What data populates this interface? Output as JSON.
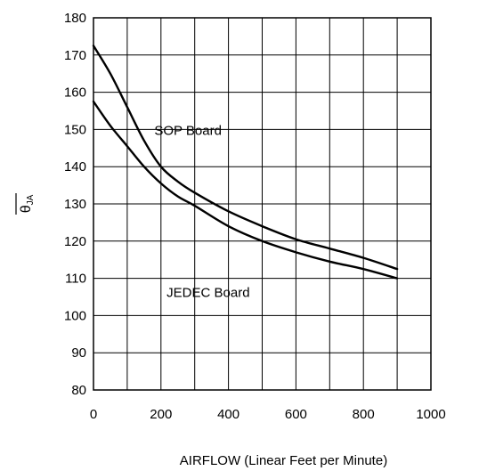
{
  "chart_data": {
    "type": "line",
    "xlabel": "AIRFLOW (Linear Feet per Minute)",
    "ylabel": "θJA",
    "ylabel_main": "θ",
    "ylabel_sub": "JA",
    "xlim": [
      0,
      1000
    ],
    "ylim": [
      80,
      180
    ],
    "x_ticks": [
      0,
      200,
      400,
      600,
      800,
      1000
    ],
    "y_ticks": [
      80,
      90,
      100,
      110,
      120,
      130,
      140,
      150,
      160,
      170,
      180
    ],
    "x_minor_step": 100,
    "grid": true,
    "series": [
      {
        "name": "SOP Board",
        "x": [
          0,
          50,
          100,
          150,
          200,
          250,
          300,
          400,
          500,
          600,
          700,
          800,
          900
        ],
        "y": [
          172.5,
          165,
          156,
          147,
          140,
          136,
          133,
          128,
          124,
          120.5,
          118,
          115.5,
          112.5
        ]
      },
      {
        "name": "JEDEC Board",
        "x": [
          0,
          50,
          100,
          150,
          200,
          250,
          300,
          400,
          500,
          600,
          700,
          800,
          900
        ],
        "y": [
          157.5,
          151,
          145.5,
          140,
          135.5,
          132,
          129.5,
          124,
          120,
          117,
          114.5,
          112.5,
          110
        ]
      }
    ]
  }
}
